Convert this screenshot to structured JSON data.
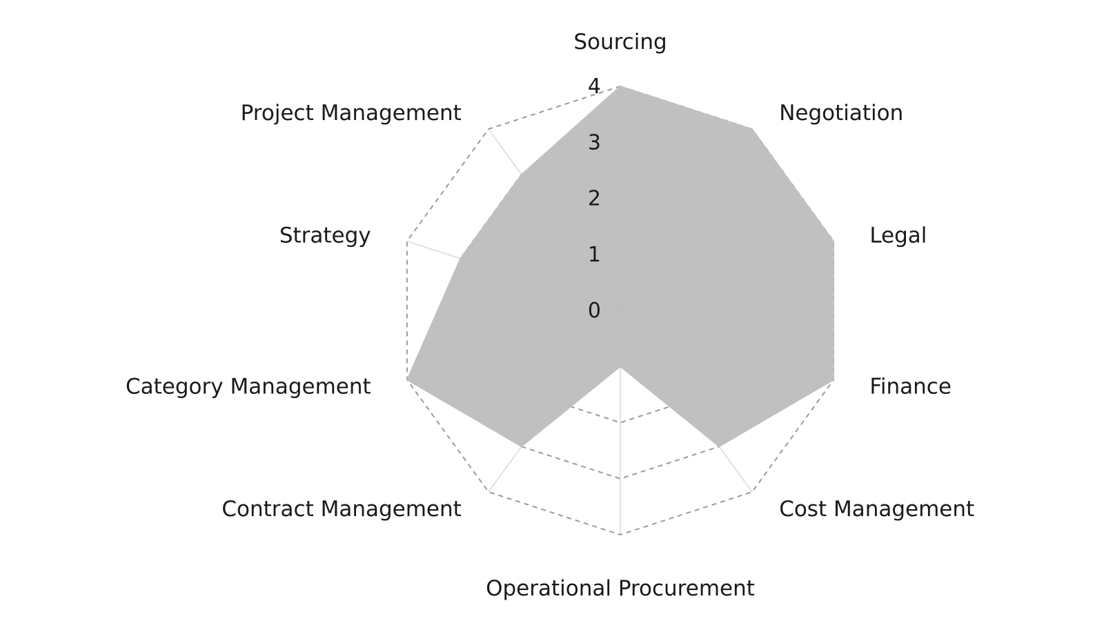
{
  "chart_data": {
    "type": "radar",
    "categories": [
      "Sourcing",
      "Negotiation",
      "Legal",
      "Finance",
      "Cost Management",
      "Operational Procurement",
      "Contract Management",
      "Category Management",
      "Strategy",
      "Project Management"
    ],
    "values": [
      4,
      4,
      4,
      4,
      3,
      1,
      3,
      4,
      3,
      3
    ],
    "rlim": [
      0,
      4
    ],
    "rticks": [
      "0",
      "1",
      "2",
      "3",
      "4"
    ],
    "grid": "dashed outer rings",
    "colors": {
      "fill": "#c0c0c0",
      "grid": "#9a9a9a",
      "spoke": "#e2e2e2",
      "text": "#1a1a1a"
    }
  }
}
